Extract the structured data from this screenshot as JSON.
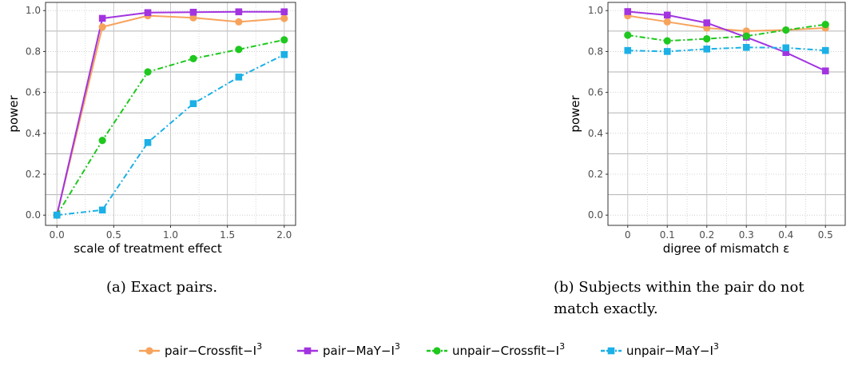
{
  "legend": [
    {
      "label": "pair−Crossfit−I",
      "sup": "3",
      "color": "#f7a35c",
      "marker": "circle",
      "dash": "solid"
    },
    {
      "label": "pair−MaY−I",
      "sup": "3",
      "color": "#a234e0",
      "marker": "square",
      "dash": "solid"
    },
    {
      "label": "unpair−Crossfit−I",
      "sup": "3",
      "color": "#1ec81e",
      "marker": "circle",
      "dash": "dashdot"
    },
    {
      "label": "unpair−MaY−I",
      "sup": "3",
      "color": "#1bb0e6",
      "marker": "square",
      "dash": "dashdot"
    }
  ],
  "chart_data": [
    {
      "type": "line",
      "caption": "(a) Exact pairs.",
      "xlabel": "scale of treatment effect",
      "ylabel": "power",
      "xlim": [
        -0.1,
        2.1
      ],
      "ylim": [
        -0.05,
        1.04
      ],
      "xticks": [
        0.0,
        0.5,
        1.0,
        1.5,
        2.0
      ],
      "xtick_labels": [
        "0.0",
        "0.5",
        "1.0",
        "1.5",
        "2.0"
      ],
      "yticks": [
        0.0,
        0.2,
        0.4,
        0.6,
        0.8,
        1.0
      ],
      "ytick_labels": [
        "0.0",
        "0.2",
        "0.4",
        "0.6",
        "0.8",
        "1.0"
      ],
      "grid": true,
      "x": [
        0.0,
        0.4,
        0.8,
        1.2,
        1.6,
        2.0
      ],
      "series": [
        {
          "values": [
            0.0,
            0.92,
            0.975,
            0.965,
            0.945,
            0.962
          ]
        },
        {
          "values": [
            0.0,
            0.962,
            0.99,
            0.992,
            0.994,
            0.994
          ]
        },
        {
          "values": [
            0.0,
            0.365,
            0.7,
            0.765,
            0.81,
            0.857
          ]
        },
        {
          "values": [
            0.0,
            0.025,
            0.355,
            0.545,
            0.675,
            0.785
          ]
        }
      ]
    },
    {
      "type": "line",
      "caption": "(b) Subjects within the pair do not match exactly.",
      "caption_lines": [
        "(b) Subjects within the pair do not",
        "match exactly."
      ],
      "xlabel": "digree of mismatch ε",
      "ylabel": "power",
      "xlim": [
        -0.05,
        0.55
      ],
      "ylim": [
        -0.05,
        1.04
      ],
      "xticks": [
        0.0,
        0.1,
        0.2,
        0.3,
        0.4,
        0.5
      ],
      "xtick_labels": [
        "0",
        "0.1",
        "0.2",
        "0.3",
        "0.4",
        "0.5"
      ],
      "yticks": [
        0.0,
        0.2,
        0.4,
        0.6,
        0.8,
        1.0
      ],
      "ytick_labels": [
        "0.0",
        "0.2",
        "0.4",
        "0.6",
        "0.8",
        "1.0"
      ],
      "grid": true,
      "x": [
        0.0,
        0.1,
        0.2,
        0.3,
        0.4,
        0.5
      ],
      "series": [
        {
          "values": [
            0.975,
            0.945,
            0.915,
            0.9,
            0.905,
            0.915
          ]
        },
        {
          "values": [
            0.995,
            0.978,
            0.94,
            0.87,
            0.795,
            0.705
          ]
        },
        {
          "values": [
            0.88,
            0.852,
            0.862,
            0.875,
            0.905,
            0.932
          ]
        },
        {
          "values": [
            0.805,
            0.8,
            0.812,
            0.82,
            0.818,
            0.805
          ]
        }
      ]
    }
  ]
}
